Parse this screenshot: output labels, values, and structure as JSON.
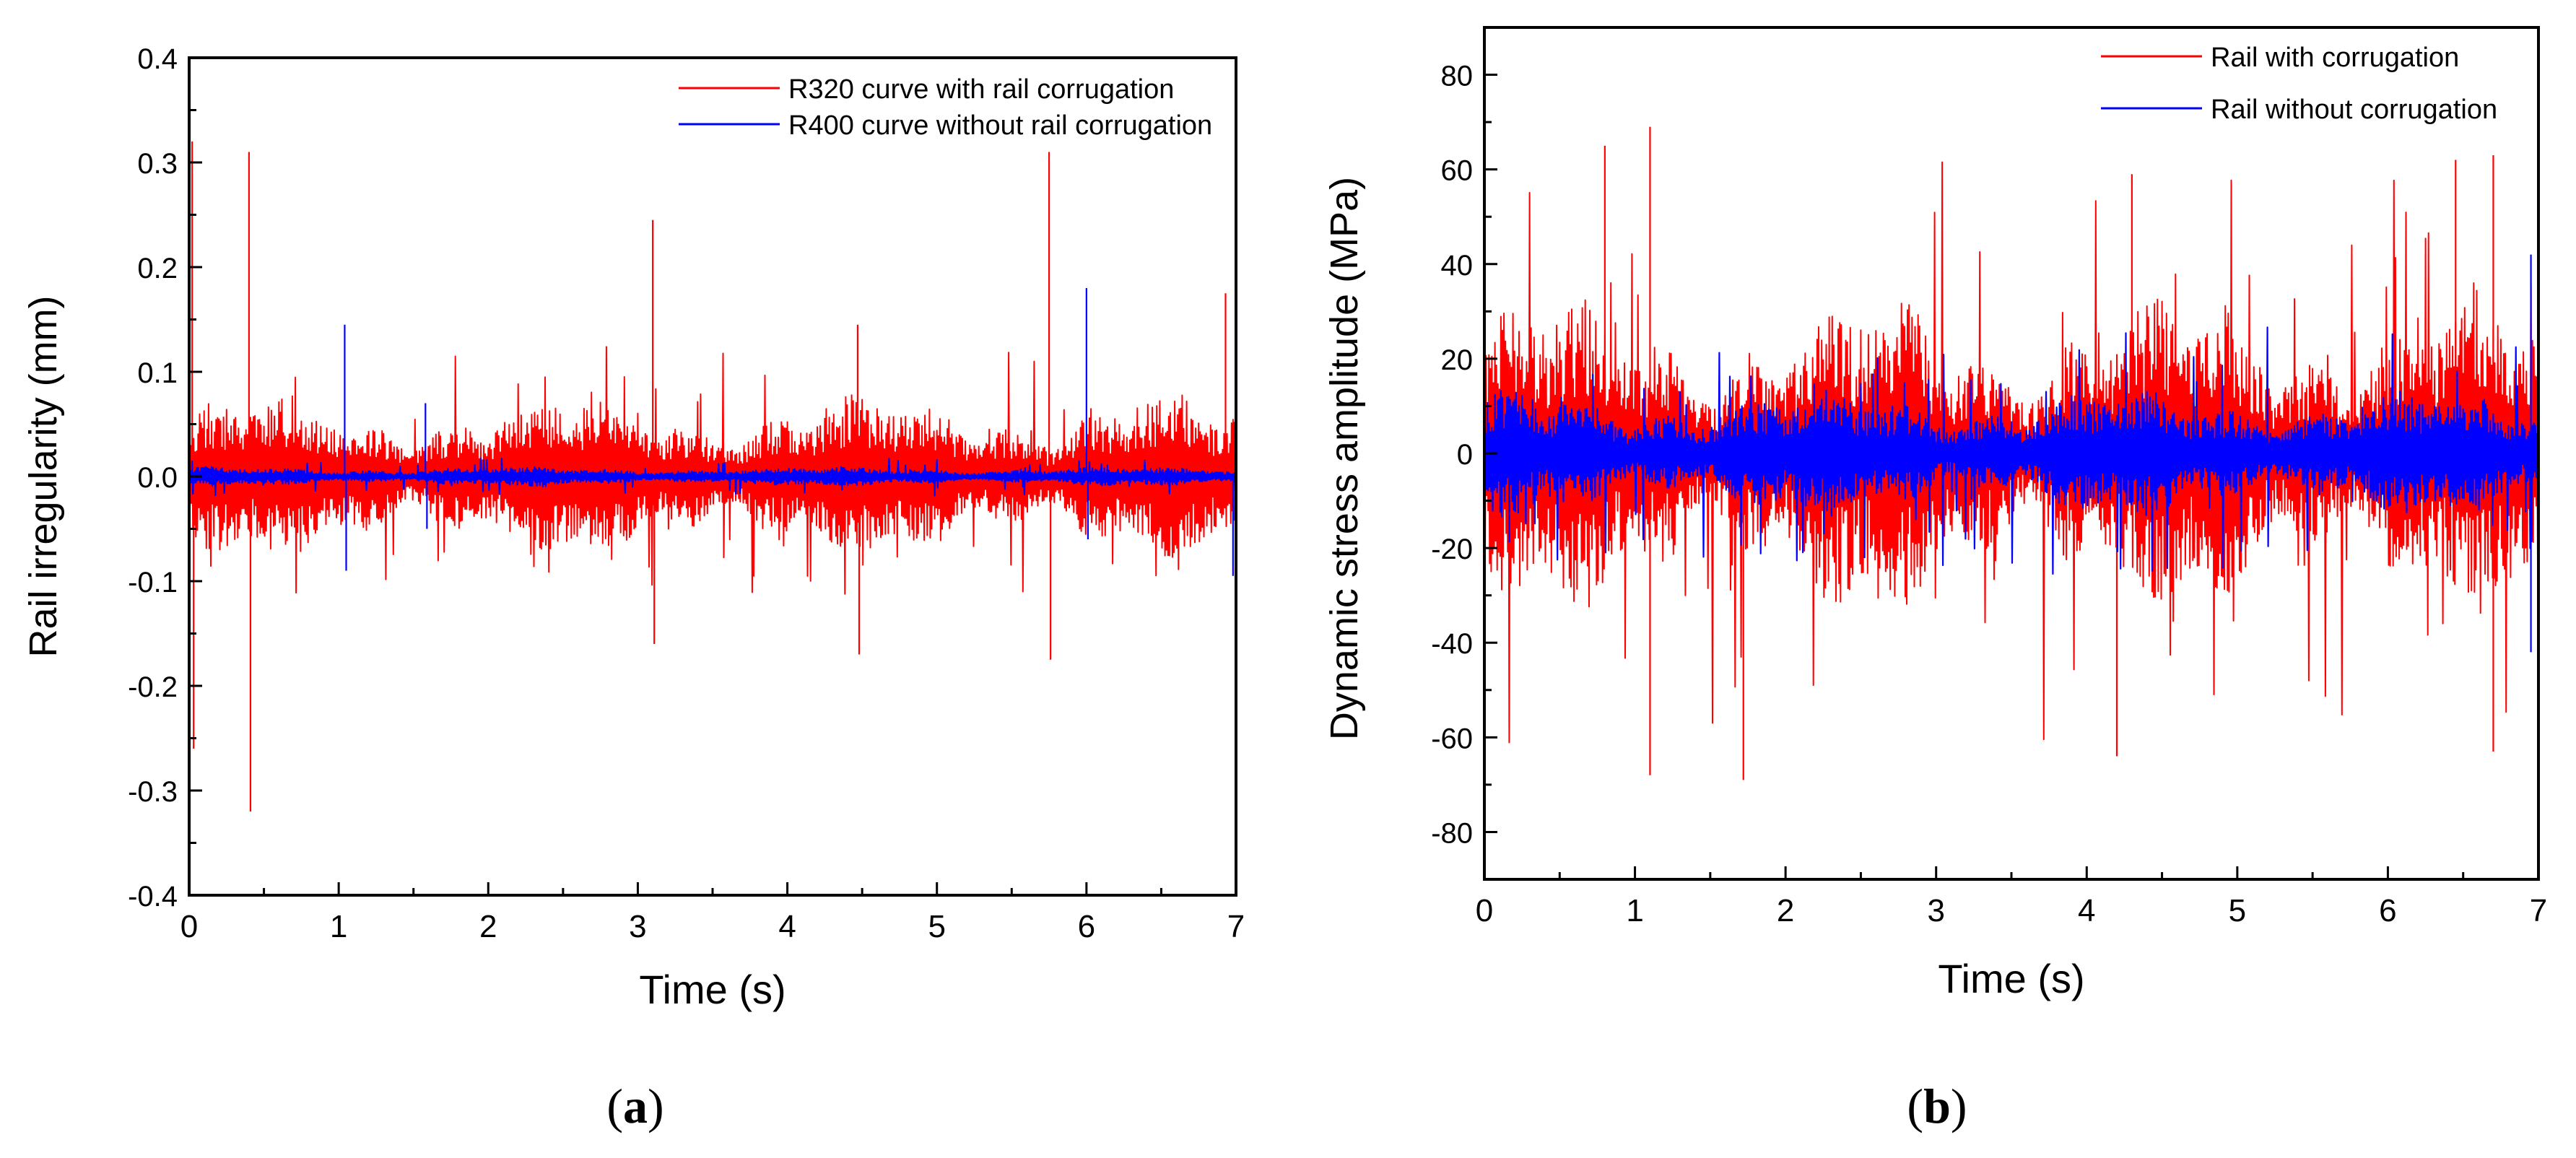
{
  "chart_data": [
    {
      "panel_label": "a",
      "type": "line",
      "title": "",
      "xlabel": "Time (s)",
      "ylabel": "Rail irregularity (mm)",
      "xlim": [
        0,
        7
      ],
      "ylim": [
        -0.4,
        0.4
      ],
      "x_ticks": [
        0,
        1,
        2,
        3,
        4,
        5,
        6,
        7
      ],
      "y_ticks": [
        -0.4,
        -0.3,
        -0.2,
        -0.1,
        0.0,
        0.1,
        0.2,
        0.3,
        0.4
      ],
      "y_tick_labels": [
        "-0.4",
        "-0.3",
        "-0.2",
        "-0.1",
        "0.0",
        "0.1",
        "0.2",
        "0.3",
        "0.4"
      ],
      "grid": false,
      "legend_position": "top-right",
      "series": [
        {
          "name": "R320 curve with rail corrugation",
          "color": "#ff0000",
          "typical_amplitude": 0.07,
          "peak_amplitude": 0.13,
          "spikes": [
            {
              "t": 0.02,
              "y": 0.32
            },
            {
              "t": 0.03,
              "y": -0.26
            },
            {
              "t": 0.4,
              "y": 0.31
            },
            {
              "t": 0.41,
              "y": -0.32
            },
            {
              "t": 3.1,
              "y": 0.245
            },
            {
              "t": 3.11,
              "y": -0.16
            },
            {
              "t": 4.47,
              "y": 0.145
            },
            {
              "t": 4.48,
              "y": -0.17
            },
            {
              "t": 5.75,
              "y": 0.31
            },
            {
              "t": 5.76,
              "y": -0.175
            },
            {
              "t": 6.93,
              "y": 0.175
            }
          ]
        },
        {
          "name": "R400 curve without rail corrugation",
          "color": "#0000ff",
          "typical_amplitude": 0.008,
          "peak_amplitude": 0.02,
          "spikes": [
            {
              "t": 1.04,
              "y": 0.145
            },
            {
              "t": 1.05,
              "y": -0.09
            },
            {
              "t": 1.58,
              "y": 0.07
            },
            {
              "t": 1.59,
              "y": -0.05
            },
            {
              "t": 6.0,
              "y": 0.18
            },
            {
              "t": 6.01,
              "y": -0.06
            },
            {
              "t": 6.98,
              "y": -0.095
            }
          ]
        }
      ]
    },
    {
      "panel_label": "b",
      "type": "line",
      "title": "",
      "xlabel": "Time (s)",
      "ylabel": "Dynamic stress amplitude (MPa)",
      "xlim": [
        0,
        7
      ],
      "ylim": [
        -90,
        90
      ],
      "x_ticks": [
        0,
        1,
        2,
        3,
        4,
        5,
        6,
        7
      ],
      "y_ticks": [
        -80,
        -60,
        -40,
        -20,
        0,
        20,
        40,
        60,
        80
      ],
      "y_tick_labels": [
        "-80",
        "-60",
        "-40",
        "-20",
        "0",
        "20",
        "40",
        "60",
        "80"
      ],
      "grid": false,
      "legend_position": "top-right",
      "series": [
        {
          "name": "Rail with corrugation",
          "color": "#ff0000",
          "typical_amplitude": 30,
          "peak_amplitude": 66,
          "spikes": [
            {
              "t": 0.8,
              "y": 65
            },
            {
              "t": 1.1,
              "y": 69
            },
            {
              "t": 1.1,
              "y": -68
            },
            {
              "t": 1.72,
              "y": -69
            },
            {
              "t": 4.2,
              "y": -64
            },
            {
              "t": 4.3,
              "y": 59
            },
            {
              "t": 6.45,
              "y": 62
            },
            {
              "t": 6.7,
              "y": 63
            },
            {
              "t": 6.7,
              "y": -63
            }
          ]
        },
        {
          "name": "Rail without corrugation",
          "color": "#0000ff",
          "typical_amplitude": 12,
          "peak_amplitude": 28,
          "spikes": [
            {
              "t": 6.95,
              "y": 42
            },
            {
              "t": 6.95,
              "y": -42
            }
          ]
        }
      ]
    }
  ]
}
